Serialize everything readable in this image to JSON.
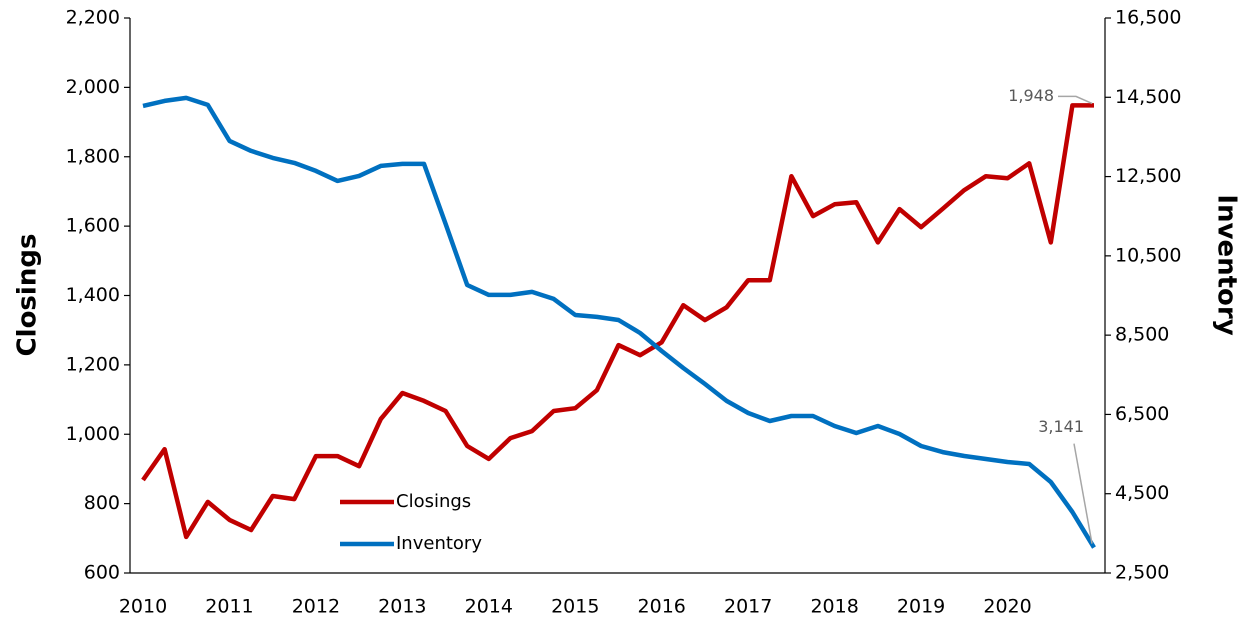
{
  "chart_data": {
    "type": "line",
    "categories": [
      "2010",
      null,
      null,
      null,
      "2011",
      null,
      null,
      null,
      "2012",
      null,
      null,
      null,
      "2013",
      null,
      null,
      null,
      "2014",
      null,
      null,
      null,
      "2015",
      null,
      null,
      null,
      "2016",
      null,
      null,
      null,
      "2017",
      null,
      null,
      null,
      "2018",
      null,
      null,
      null,
      "2019",
      null,
      null,
      null,
      "2020",
      null,
      null,
      null,
      null
    ],
    "ylabel": "Closings",
    "y2label": "Inventory",
    "ylim": [
      600,
      2200
    ],
    "yticks": [
      600,
      800,
      {
        "value": 1000,
        "label": "1,000"
      },
      {
        "value": 1200,
        "label": "1,200"
      },
      {
        "value": 1400,
        "label": "1,400"
      },
      {
        "value": 1600,
        "label": "1,600"
      },
      {
        "value": 1800,
        "label": "1,800"
      },
      {
        "value": 2000,
        "label": "2,000"
      },
      {
        "value": 2200,
        "label": "2,200"
      }
    ],
    "y2lim": [
      2500,
      16500
    ],
    "y2ticks": [
      {
        "value": 2500,
        "label": "2,500"
      },
      {
        "value": 4500,
        "label": "4,500"
      },
      {
        "value": 6500,
        "label": "6,500"
      },
      {
        "value": 8500,
        "label": "8,500"
      },
      {
        "value": 10500,
        "label": "10,500"
      },
      {
        "value": 12500,
        "label": "12,500"
      },
      {
        "value": 14500,
        "label": "14,500"
      },
      {
        "value": 16500,
        "label": "16,500"
      }
    ],
    "legend": "lower left",
    "series": [
      {
        "name": "Closings",
        "color": "#c00000",
        "values": [
          868,
          957,
          704,
          805,
          753,
          724,
          822,
          813,
          937,
          937,
          908,
          1044,
          1119,
          1096,
          1067,
          966,
          929,
          989,
          1009,
          1067,
          1075,
          1127,
          1257,
          1228,
          1265,
          1372,
          1329,
          1366,
          1444,
          1444,
          1744,
          1629,
          1663,
          1669,
          1553,
          1649,
          1597,
          1650,
          1704,
          1744,
          1738,
          1781,
          1553,
          1948,
          1948
        ],
        "value_labels": [
          null,
          null,
          null,
          null,
          null,
          null,
          null,
          null,
          null,
          null,
          null,
          null,
          null,
          null,
          null,
          null,
          null,
          null,
          null,
          null,
          null,
          null,
          null,
          null,
          null,
          null,
          null,
          null,
          null,
          null,
          null,
          null,
          null,
          null,
          null,
          null,
          null,
          null,
          null,
          null,
          null,
          null,
          null,
          null,
          "1,948"
        ]
      },
      {
        "name": "Inventory",
        "color": "#0070c0",
        "axis": "y2",
        "values": [
          14283,
          14409,
          14485,
          14308,
          13400,
          13147,
          12970,
          12844,
          12643,
          12390,
          12516,
          12768,
          12819,
          12819,
          11305,
          9766,
          9514,
          9514,
          9590,
          9413,
          9009,
          8959,
          8883,
          8555,
          8101,
          7672,
          7268,
          6840,
          6537,
          6335,
          6461,
          6461,
          6209,
          6032,
          6209,
          6007,
          5704,
          5550,
          5452,
          5376,
          5300,
          5250,
          4796,
          4039,
          3141
        ],
        "value_labels": [
          null,
          null,
          null,
          null,
          null,
          null,
          null,
          null,
          null,
          null,
          null,
          null,
          null,
          null,
          null,
          null,
          null,
          null,
          null,
          null,
          null,
          null,
          null,
          null,
          null,
          null,
          null,
          null,
          null,
          null,
          null,
          null,
          null,
          null,
          null,
          null,
          null,
          null,
          null,
          null,
          null,
          null,
          null,
          null,
          "3,141"
        ]
      }
    ]
  }
}
